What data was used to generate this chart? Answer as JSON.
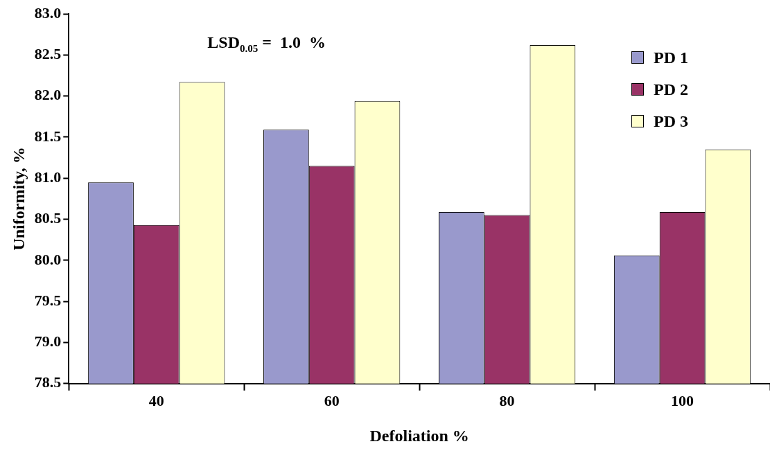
{
  "chart_data": {
    "type": "bar",
    "xlabel": "Defoliation %",
    "ylabel": "Uniformity, %",
    "categories": [
      "40",
      "60",
      "80",
      "100"
    ],
    "series": [
      {
        "name": "PD 1",
        "color": "#9999cc",
        "values": [
          80.95,
          81.59,
          80.59,
          80.06
        ]
      },
      {
        "name": "PD 2",
        "color": "#993366",
        "values": [
          80.43,
          81.15,
          80.55,
          80.59
        ]
      },
      {
        "name": "PD 3",
        "color": "#ffffcc",
        "values": [
          82.17,
          81.94,
          82.62,
          81.35
        ]
      }
    ],
    "ylim": [
      78.5,
      83.0
    ],
    "yticks": [
      {
        "value": 78.5,
        "label": "78.5"
      },
      {
        "value": 79,
        "label": "79.0"
      },
      {
        "value": 79.5,
        "label": "79.5"
      },
      {
        "value": 80,
        "label": "80.0"
      },
      {
        "value": 80.5,
        "label": "80.5"
      },
      {
        "value": 81,
        "label": "81.0"
      },
      {
        "value": 81.5,
        "label": "81.5"
      },
      {
        "value": 82,
        "label": "82.0"
      },
      {
        "value": 82.5,
        "label": "82.5"
      },
      {
        "value": 83,
        "label": "83.0"
      }
    ],
    "grid": false,
    "legend": "top right",
    "annotations": [
      "LSD$_{0.05}$ =  1.0  %"
    ]
  }
}
